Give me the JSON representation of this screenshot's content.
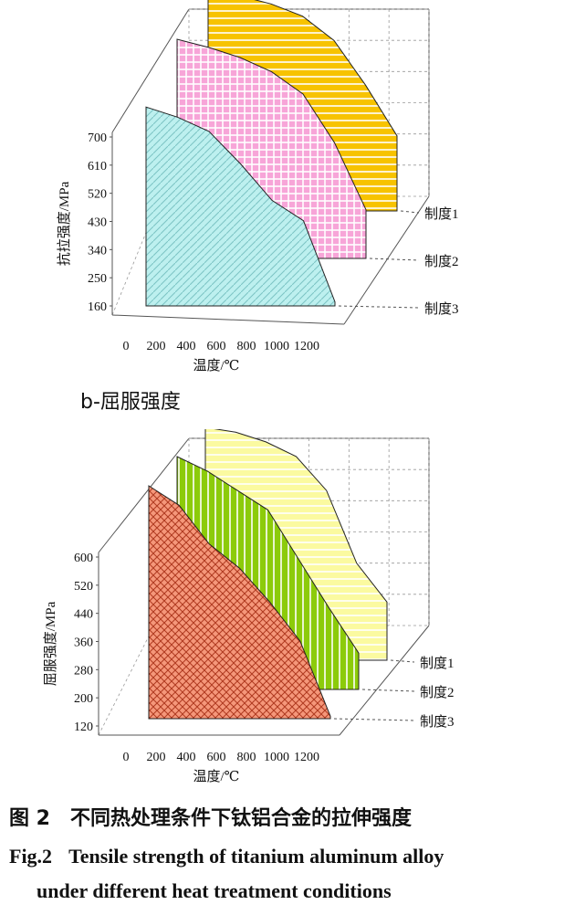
{
  "chart_data": [
    {
      "type": "area",
      "subtitle": "",
      "xlabel": "温度/℃",
      "ylabel": "抗拉强度/MPa",
      "x_ticks": [
        "0",
        "200",
        "400",
        "600",
        "800",
        "1000",
        "1200"
      ],
      "y_ticks": [
        "160",
        "250",
        "340",
        "430",
        "520",
        "610",
        "700"
      ],
      "ylim": [
        160,
        700
      ],
      "x": [
        0,
        200,
        400,
        600,
        800,
        1000,
        1200
      ],
      "series": [
        {
          "name": "制度1",
          "color": "#f7c300",
          "pattern": "horizontal",
          "values": [
            700,
            690,
            670,
            640,
            580,
            470,
            345
          ]
        },
        {
          "name": "制度2",
          "color": "#f7a5d8",
          "pattern": "grid",
          "values": [
            700,
            680,
            655,
            620,
            565,
            445,
            280
          ]
        },
        {
          "name": "制度3",
          "color": "#bdf0ef",
          "pattern": "diagonal",
          "values": [
            650,
            625,
            590,
            510,
            420,
            370,
            170
          ]
        }
      ]
    },
    {
      "type": "area",
      "subtitle": "b-屈服强度",
      "xlabel": "温度/℃",
      "ylabel": "屈服强度/MPa",
      "x_ticks": [
        "0",
        "200",
        "400",
        "600",
        "800",
        "1000",
        "1200"
      ],
      "y_ticks": [
        "120",
        "200",
        "280",
        "360",
        "440",
        "520",
        "600"
      ],
      "ylim": [
        120,
        600
      ],
      "x": [
        0,
        200,
        400,
        600,
        800,
        1000,
        1200
      ],
      "series": [
        {
          "name": "制度1",
          "color": "#fbfaa0",
          "pattern": "horizontal",
          "values": [
            600,
            590,
            570,
            540,
            470,
            320,
            240
          ]
        },
        {
          "name": "制度2",
          "color": "#8ccb0a",
          "pattern": "vertical",
          "values": [
            600,
            570,
            530,
            490,
            390,
            290,
            195
          ]
        },
        {
          "name": "制度3",
          "color": "#f5977a",
          "pattern": "crosshatch",
          "values": [
            600,
            560,
            480,
            430,
            360,
            280,
            125
          ]
        }
      ]
    }
  ],
  "caption": {
    "subtitle_b": "b-屈服强度",
    "cn": "图 2　不同热处理条件下钛铝合金的拉伸强度",
    "en_label": "Fig.2",
    "en_line1": "Tensile strength of titanium aluminum alloy",
    "en_line2": "under different heat treatment conditions"
  }
}
